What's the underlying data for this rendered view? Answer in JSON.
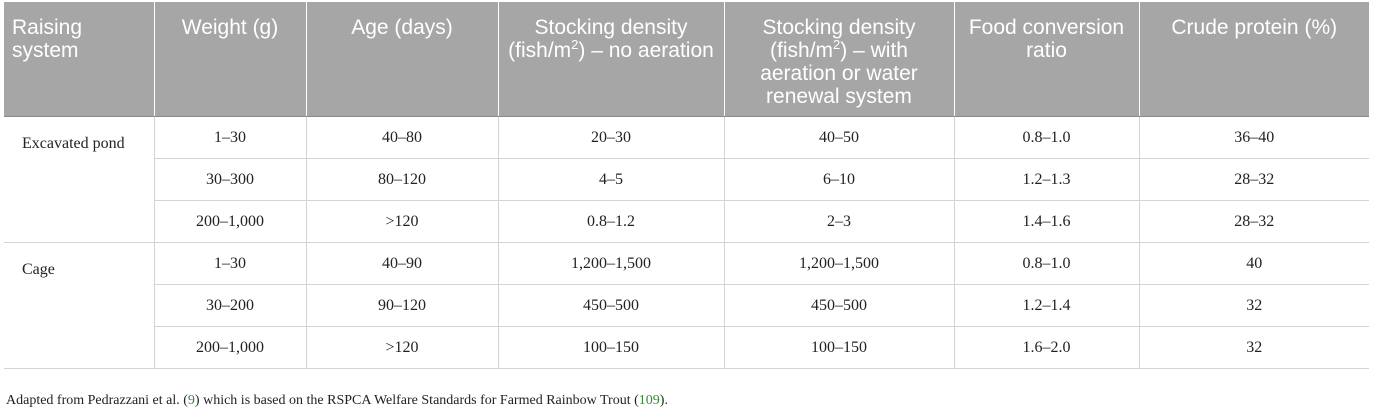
{
  "table": {
    "headers": [
      {
        "pre": "Raising system",
        "sup": "",
        "post": ""
      },
      {
        "pre": "Weight (g)",
        "sup": "",
        "post": ""
      },
      {
        "pre": "Age (days)",
        "sup": "",
        "post": ""
      },
      {
        "pre": "Stocking density (fish/m",
        "sup": "2",
        "post": ") – no aeration"
      },
      {
        "pre": "Stocking density (fish/m",
        "sup": "2",
        "post": ") – with aeration or water renewal system"
      },
      {
        "pre": "Food conversion ratio",
        "sup": "",
        "post": ""
      },
      {
        "pre": "Crude protein (%)",
        "sup": "",
        "post": ""
      }
    ],
    "groups": [
      {
        "system": "Excavated pond",
        "rows": [
          [
            "1–30",
            "40–80",
            "20–30",
            "40–50",
            "0.8–1.0",
            "36–40"
          ],
          [
            "30–300",
            "80–120",
            "4–5",
            "6–10",
            "1.2–1.3",
            "28–32"
          ],
          [
            "200–1,000",
            ">120",
            "0.8–1.2",
            "2–3",
            "1.4–1.6",
            "28–32"
          ]
        ]
      },
      {
        "system": "Cage",
        "rows": [
          [
            "1–30",
            "40–90",
            "1,200–1,500",
            "1,200–1,500",
            "0.8–1.0",
            "40"
          ],
          [
            "30–200",
            "90–120",
            "450–500",
            "450–500",
            "1.2–1.4",
            "32"
          ],
          [
            "200–1,000",
            ">120",
            "100–150",
            "100–150",
            "1.6–2.0",
            "32"
          ]
        ]
      }
    ]
  },
  "footnote": {
    "text1": "Adapted from Pedrazzani et al. (",
    "ref1": "9",
    "text2": ") which is based on the RSPCA Welfare Standards for Farmed Rainbow Trout (",
    "ref2": "109",
    "text3": ")."
  }
}
